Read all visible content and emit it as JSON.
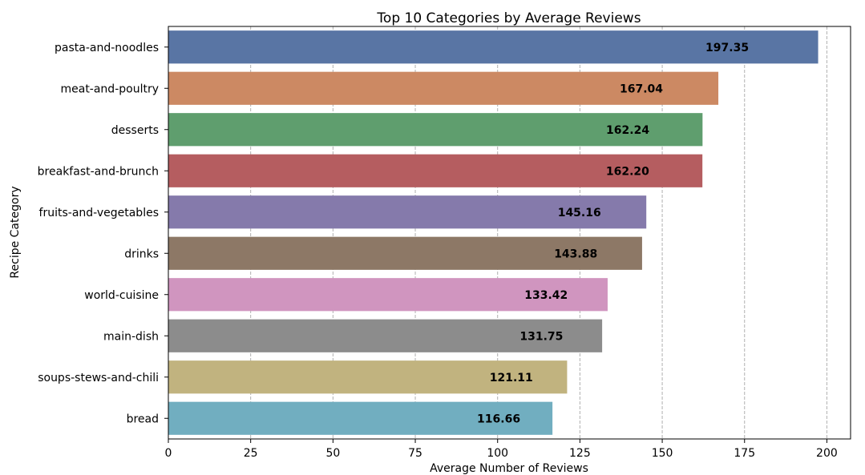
{
  "chart_data": {
    "type": "bar",
    "orientation": "horizontal",
    "title": "Top 10 Categories by Average Reviews",
    "xlabel": "Average Number of Reviews",
    "ylabel": "Recipe Category",
    "categories": [
      "pasta-and-noodles",
      "meat-and-poultry",
      "desserts",
      "breakfast-and-brunch",
      "fruits-and-vegetables",
      "drinks",
      "world-cuisine",
      "main-dish",
      "soups-stews-and-chili",
      "bread"
    ],
    "values": [
      197.35,
      167.04,
      162.24,
      162.2,
      145.16,
      143.88,
      133.42,
      131.75,
      121.11,
      116.66
    ],
    "data_labels": [
      "197.35",
      "167.04",
      "162.24",
      "162.20",
      "145.16",
      "143.88",
      "133.42",
      "131.75",
      "121.11",
      "116.66"
    ],
    "colors": [
      "#5975a4",
      "#cc8963",
      "#5f9e6e",
      "#b55d60",
      "#857aab",
      "#8d7866",
      "#d095bf",
      "#8c8c8c",
      "#c1b37f",
      "#71aec0"
    ],
    "xlim": [
      0,
      207.2
    ],
    "xticks": [
      0,
      25,
      50,
      75,
      100,
      125,
      150,
      175,
      200
    ],
    "grid": "x-axis dashed"
  }
}
